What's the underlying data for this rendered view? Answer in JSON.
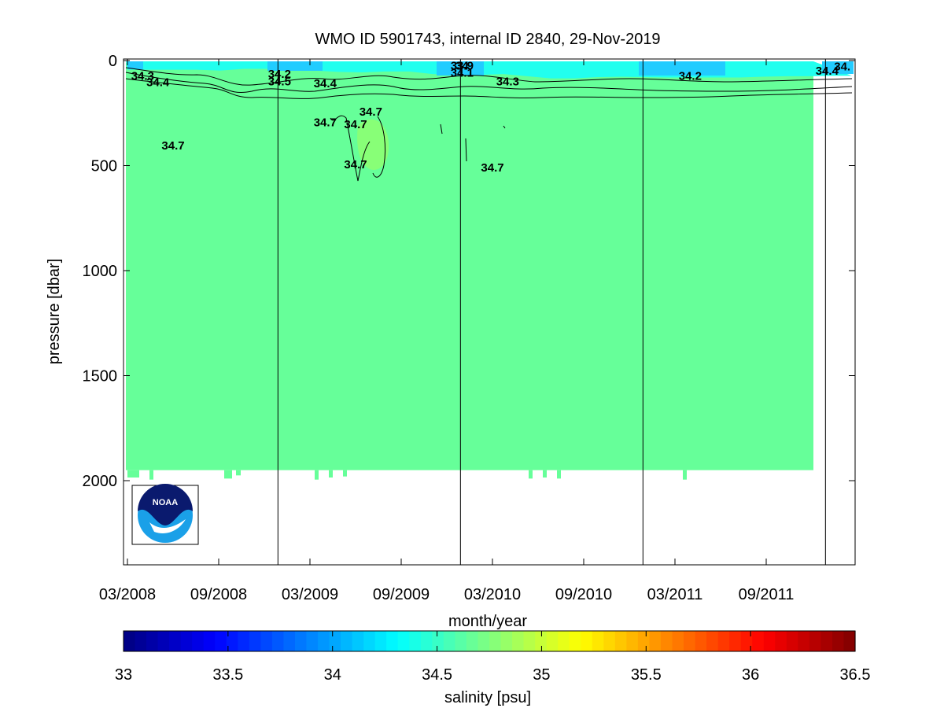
{
  "chart_data": {
    "type": "heatmap",
    "title": "WMO ID 5901743, internal ID 2840, 29-Nov-2019",
    "xlabel": "month/year",
    "ylabel": "pressure [dbar]",
    "x_tick_labels": [
      "03/2008",
      "09/2008",
      "03/2009",
      "09/2009",
      "03/2010",
      "09/2010",
      "03/2011",
      "09/2011"
    ],
    "y_ticks": [
      0,
      500,
      1000,
      1500,
      2000
    ],
    "ylim": [
      0,
      2400
    ],
    "y_reversed": true,
    "grid": false,
    "year_boundaries": [
      "01/2009",
      "01/2010",
      "01/2011",
      "01/2012"
    ],
    "dominant_field_value": 34.7,
    "surface_layer_range": [
      34.0,
      34.5
    ],
    "max_profile_depth": 1950,
    "contour_labels": [
      {
        "text": "34.3",
        "month": "04/2008",
        "pressure": 70
      },
      {
        "text": "34.4",
        "month": "05/2008",
        "pressure": 100
      },
      {
        "text": "34.7",
        "month": "06/2008",
        "pressure": 400
      },
      {
        "text": "34.2",
        "month": "01/2009",
        "pressure": 60
      },
      {
        "text": "34.5",
        "month": "01/2009",
        "pressure": 95
      },
      {
        "text": "34.4",
        "month": "04/2009",
        "pressure": 105
      },
      {
        "text": "34.7",
        "month": "04/2009",
        "pressure": 290
      },
      {
        "text": "34.7",
        "month": "06/2009",
        "pressure": 300
      },
      {
        "text": "34.7",
        "month": "07/2009",
        "pressure": 240
      },
      {
        "text": "34.7",
        "month": "06/2009",
        "pressure": 490
      },
      {
        "text": "33.9",
        "month": "01/2010",
        "pressure": 20
      },
      {
        "text": "34",
        "month": "01/2010",
        "pressure": 20
      },
      {
        "text": "34.1",
        "month": "01/2010",
        "pressure": 55
      },
      {
        "text": "34.3",
        "month": "04/2010",
        "pressure": 95
      },
      {
        "text": "34.7",
        "month": "03/2010",
        "pressure": 505
      },
      {
        "text": "34.2",
        "month": "04/2011",
        "pressure": 70
      },
      {
        "text": "34.4",
        "month": "01/2012",
        "pressure": 45
      },
      {
        "text": "34.",
        "month": "02/2012",
        "pressure": 25
      }
    ],
    "colorbar": {
      "label": "salinity [psu]",
      "min": 33,
      "max": 36.5,
      "tick_labels": [
        "33",
        "33.5",
        "34",
        "34.5",
        "35",
        "35.5",
        "36",
        "36.5"
      ],
      "colormap": "jet"
    },
    "colors": {
      "deep_water": "#66ff99",
      "surface_water": "#22ffee",
      "fresh_surface": "#22ccff",
      "contour_line": "#000000",
      "background": "#ffffff"
    },
    "logo": {
      "text": "NOAA",
      "placement": "bottom-left"
    }
  }
}
